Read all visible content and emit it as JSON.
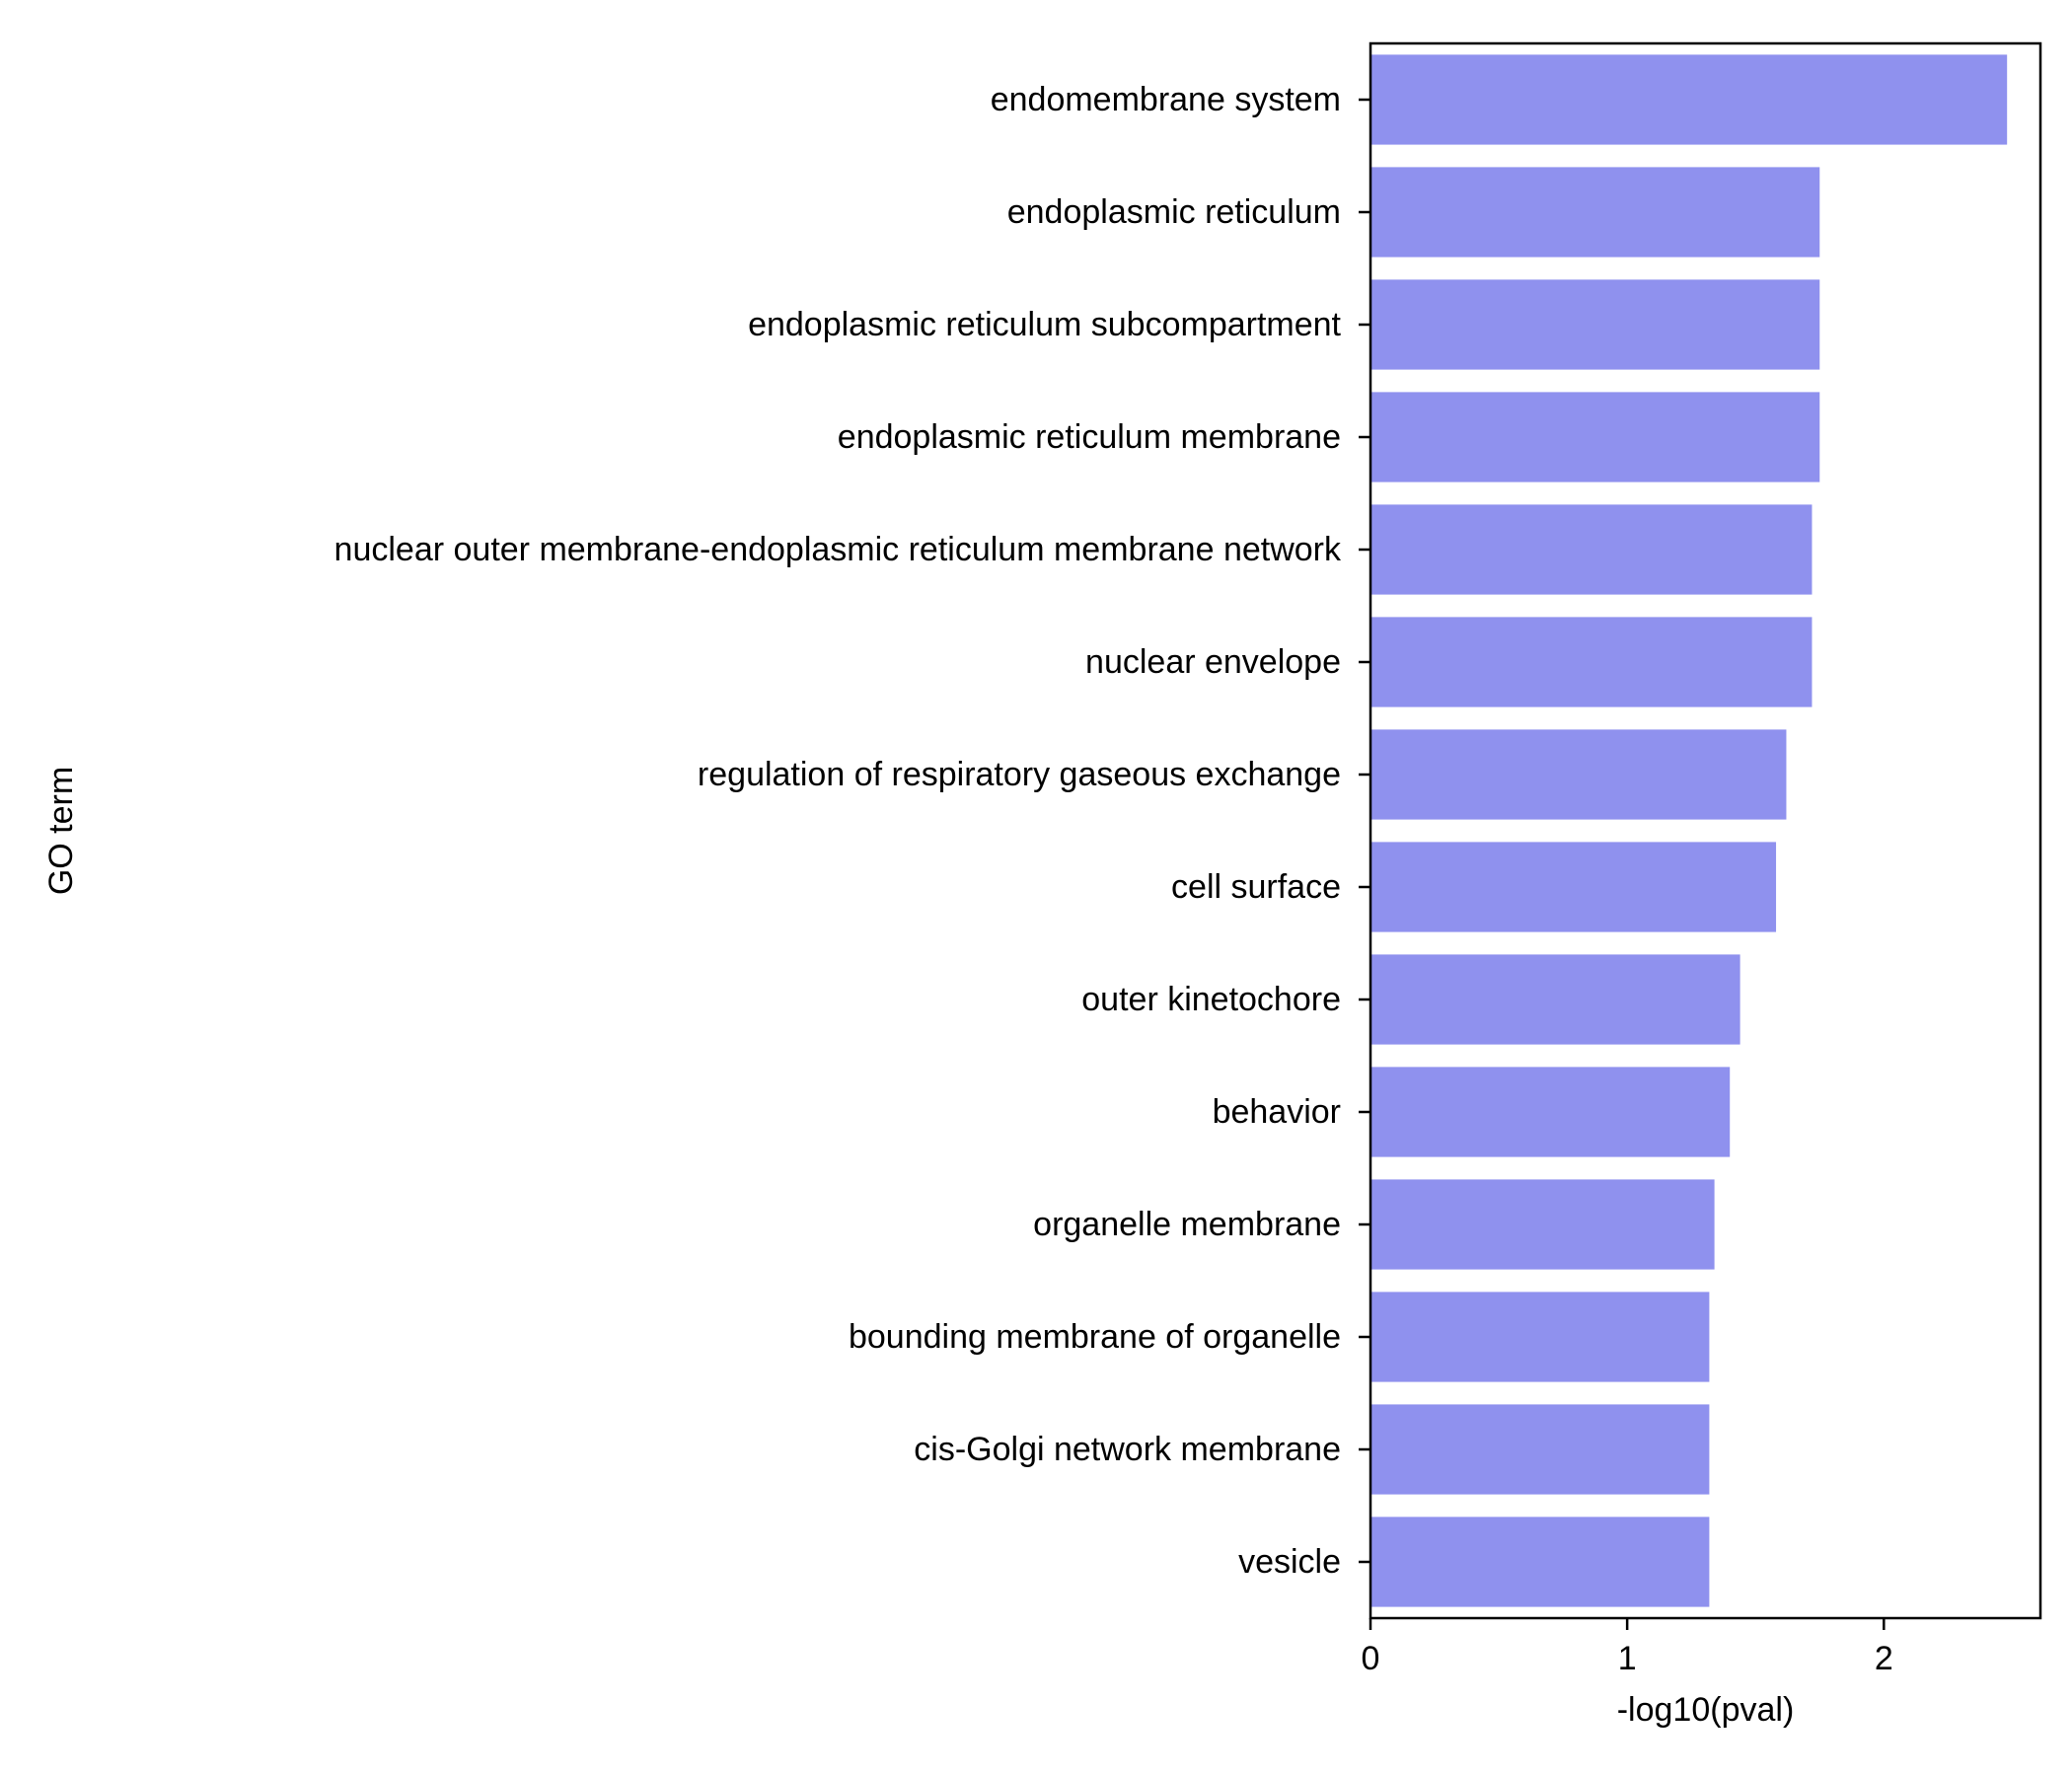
{
  "chart_data": {
    "type": "bar",
    "orientation": "horizontal",
    "categories": [
      "endomembrane system",
      "endoplasmic reticulum",
      "endoplasmic reticulum subcompartment",
      "endoplasmic reticulum membrane",
      "nuclear outer membrane-endoplasmic reticulum membrane network",
      "nuclear envelope",
      "regulation of respiratory gaseous exchange",
      "cell surface",
      "outer kinetochore",
      "behavior",
      "organelle membrane",
      "bounding membrane of organelle",
      "cis-Golgi network membrane",
      "vesicle"
    ],
    "values": [
      2.48,
      1.75,
      1.75,
      1.75,
      1.72,
      1.72,
      1.62,
      1.58,
      1.44,
      1.4,
      1.34,
      1.32,
      1.32,
      1.32
    ],
    "xlabel": "-log10(pval)",
    "ylabel": "GO term",
    "xlim": [
      0,
      2.61
    ],
    "xticks": [
      "0",
      "1",
      "2"
    ],
    "xtick_values": [
      0,
      1,
      2
    ],
    "bar_color": "#8f91ee",
    "grid": false,
    "legend": "none"
  }
}
